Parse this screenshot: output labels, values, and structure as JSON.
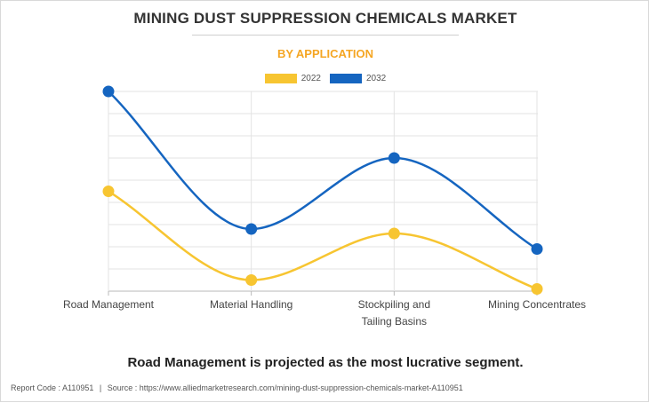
{
  "header": {
    "title": "MINING DUST SUPPRESSION CHEMICALS MARKET",
    "subtitle": "BY APPLICATION"
  },
  "footer": {
    "takeaway": "Road Management is projected as the most lucrative segment.",
    "report_code": "Report Code : A110951",
    "separator": "|",
    "source": "Source : https://www.alliedmarketresearch.com/mining-dust-suppression-chemicals-market-A110951"
  },
  "colors": {
    "series_2022": "#f7c531",
    "series_2032": "#1565c0",
    "grid": "#e3e3e3",
    "axis": "#b8b8b8"
  },
  "chart_data": {
    "type": "line",
    "smooth": true,
    "title": "MINING DUST SUPPRESSION CHEMICALS MARKET",
    "subtitle": "BY APPLICATION",
    "xlabel": "",
    "ylabel": "",
    "ylim": [
      0,
      9
    ],
    "grid": true,
    "y_ticks_shown": false,
    "legend_position": "top-center",
    "categories": [
      [
        "Road Management"
      ],
      [
        "Material Handling"
      ],
      [
        "Stockpiling and",
        "Tailing Basins"
      ],
      [
        "Mining Concentrates"
      ]
    ],
    "series": [
      {
        "name": "2022",
        "values": [
          4.5,
          0.5,
          2.6,
          0.1
        ]
      },
      {
        "name": "2032",
        "values": [
          9.0,
          2.8,
          6.0,
          1.9
        ]
      }
    ]
  }
}
